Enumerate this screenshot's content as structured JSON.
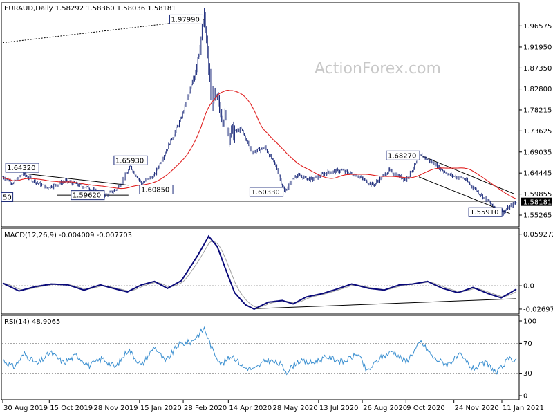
{
  "chart_data": [
    {
      "type": "candlestick",
      "panel": "price",
      "header": "EURAUD,Daily  1.58292 1.58360 1.58036 1.58181",
      "watermark": "ActionForex.com",
      "ylim": [
        1.53,
        2.01
      ],
      "ticks": [
        "1.96575",
        "1.91950",
        "1.87350",
        "1.82800",
        "1.78215",
        "1.73625",
        "1.69035",
        "1.64445",
        "1.59855",
        "1.55265"
      ],
      "current_price_label": "1.58181",
      "current_price": 1.58181,
      "colors": {
        "candle": "#1b2a7a",
        "ma": "#e02020",
        "trend": "#000000"
      },
      "anchors": [
        {
          "i": 0,
          "v": 1.636
        },
        {
          "i": 10,
          "v": 1.622
        },
        {
          "i": 18,
          "v": 1.643
        },
        {
          "i": 40,
          "v": 1.612
        },
        {
          "i": 58,
          "v": 1.627
        },
        {
          "i": 80,
          "v": 1.611
        },
        {
          "i": 95,
          "v": 1.596
        },
        {
          "i": 106,
          "v": 1.611
        },
        {
          "i": 118,
          "v": 1.658
        },
        {
          "i": 128,
          "v": 1.622
        },
        {
          "i": 140,
          "v": 1.64
        },
        {
          "i": 152,
          "v": 1.7
        },
        {
          "i": 164,
          "v": 1.76
        },
        {
          "i": 176,
          "v": 1.85
        },
        {
          "i": 186,
          "v": 1.98
        },
        {
          "i": 192,
          "v": 1.82
        },
        {
          "i": 202,
          "v": 1.78
        },
        {
          "i": 210,
          "v": 1.73
        },
        {
          "i": 220,
          "v": 1.74
        },
        {
          "i": 230,
          "v": 1.69
        },
        {
          "i": 242,
          "v": 1.7
        },
        {
          "i": 252,
          "v": 1.66
        },
        {
          "i": 260,
          "v": 1.603
        },
        {
          "i": 270,
          "v": 1.64
        },
        {
          "i": 285,
          "v": 1.63
        },
        {
          "i": 298,
          "v": 1.645
        },
        {
          "i": 312,
          "v": 1.65
        },
        {
          "i": 326,
          "v": 1.64
        },
        {
          "i": 342,
          "v": 1.618
        },
        {
          "i": 356,
          "v": 1.65
        },
        {
          "i": 372,
          "v": 1.63
        },
        {
          "i": 386,
          "v": 1.683
        },
        {
          "i": 398,
          "v": 1.665
        },
        {
          "i": 412,
          "v": 1.64
        },
        {
          "i": 426,
          "v": 1.632
        },
        {
          "i": 440,
          "v": 1.6
        },
        {
          "i": 452,
          "v": 1.573
        },
        {
          "i": 462,
          "v": 1.559
        },
        {
          "i": 474,
          "v": 1.582
        }
      ],
      "annotations": [
        {
          "text": "1.97990",
          "i": 186,
          "v": 1.9799,
          "pos": "left"
        },
        {
          "text": "1.64320",
          "i": 18,
          "v": 1.6432,
          "pos": "above"
        },
        {
          "text": "1.59620",
          "i": 95,
          "v": 1.5962,
          "pos": "left"
        },
        {
          "text": "1.60850",
          "i": 125,
          "v": 1.6085,
          "pos": "right"
        },
        {
          "text": "1.65930",
          "i": 118,
          "v": 1.6593,
          "pos": "above"
        },
        {
          "text": "1.60330",
          "i": 260,
          "v": 1.6033,
          "pos": "left"
        },
        {
          "text": "1.68270",
          "i": 386,
          "v": 1.6827,
          "pos": "left"
        },
        {
          "text": "1.55910",
          "i": 462,
          "v": 1.5591,
          "pos": "left"
        },
        {
          "text": "50",
          "i": 0,
          "v": 1.592,
          "pos": "edge"
        }
      ],
      "trendlines": [
        {
          "style": "dotted",
          "from": {
            "i": 0,
            "v": 1.929
          },
          "to": {
            "i": 186,
            "v": 1.9799
          }
        },
        {
          "style": "solid",
          "from": {
            "i": 20,
            "v": 1.6432
          },
          "to": {
            "i": 116,
            "v": 1.618
          }
        },
        {
          "style": "solid",
          "from": {
            "i": 50,
            "v": 1.5962
          },
          "to": {
            "i": 116,
            "v": 1.5962
          }
        },
        {
          "style": "solid",
          "from": {
            "i": 386,
            "v": 1.6827
          },
          "to": {
            "i": 472,
            "v": 1.599
          }
        },
        {
          "style": "solid",
          "from": {
            "i": 384,
            "v": 1.636
          },
          "to": {
            "i": 468,
            "v": 1.556
          }
        },
        {
          "style": "thin",
          "from": {
            "i": 0,
            "v": 1.5818
          },
          "to": {
            "i": 474,
            "v": 1.5818
          }
        }
      ]
    },
    {
      "type": "line",
      "panel": "macd",
      "header": "MACD(12,26,9) -0.004009 -0.007703",
      "ylim": [
        -0.031,
        0.063
      ],
      "ticks": [
        "0.059272",
        "0.0",
        "-0.026978"
      ],
      "dashed_zero": true,
      "colors": {
        "macd": "#0a0a7a",
        "signal": "#a0a0a0"
      },
      "anchors": [
        {
          "i": 0,
          "v": 0.003
        },
        {
          "i": 15,
          "v": -0.006
        },
        {
          "i": 30,
          "v": -0.001
        },
        {
          "i": 45,
          "v": 0.002
        },
        {
          "i": 60,
          "v": 0.001
        },
        {
          "i": 75,
          "v": -0.005
        },
        {
          "i": 90,
          "v": 0.001
        },
        {
          "i": 105,
          "v": -0.004
        },
        {
          "i": 115,
          "v": -0.007
        },
        {
          "i": 128,
          "v": 0.001
        },
        {
          "i": 140,
          "v": 0.005
        },
        {
          "i": 152,
          "v": -0.003
        },
        {
          "i": 165,
          "v": 0.006
        },
        {
          "i": 180,
          "v": 0.035
        },
        {
          "i": 190,
          "v": 0.057
        },
        {
          "i": 198,
          "v": 0.045
        },
        {
          "i": 206,
          "v": 0.018
        },
        {
          "i": 214,
          "v": -0.008
        },
        {
          "i": 224,
          "v": -0.022
        },
        {
          "i": 232,
          "v": -0.027
        },
        {
          "i": 245,
          "v": -0.019
        },
        {
          "i": 258,
          "v": -0.017
        },
        {
          "i": 268,
          "v": -0.021
        },
        {
          "i": 280,
          "v": -0.013
        },
        {
          "i": 295,
          "v": -0.009
        },
        {
          "i": 308,
          "v": -0.004
        },
        {
          "i": 322,
          "v": 0.002
        },
        {
          "i": 338,
          "v": -0.003
        },
        {
          "i": 352,
          "v": -0.005
        },
        {
          "i": 366,
          "v": 0.001
        },
        {
          "i": 378,
          "v": 0.002
        },
        {
          "i": 392,
          "v": 0.005
        },
        {
          "i": 406,
          "v": -0.003
        },
        {
          "i": 420,
          "v": -0.008
        },
        {
          "i": 434,
          "v": -0.002
        },
        {
          "i": 448,
          "v": -0.009
        },
        {
          "i": 460,
          "v": -0.014
        },
        {
          "i": 474,
          "v": -0.004
        }
      ],
      "trendlines": [
        {
          "style": "solid",
          "from": {
            "i": 232,
            "v": -0.0265
          },
          "to": {
            "i": 474,
            "v": -0.015
          }
        }
      ]
    },
    {
      "type": "line",
      "panel": "rsi",
      "header": "RSI(14) 48.9065",
      "ylim": [
        0,
        100
      ],
      "ticks": [
        "100",
        "70",
        "30",
        "0"
      ],
      "dashed_levels": [
        70,
        30
      ],
      "colors": {
        "rsi": "#3a8fd0"
      },
      "anchors": [
        {
          "i": 0,
          "v": 48
        },
        {
          "i": 10,
          "v": 38
        },
        {
          "i": 20,
          "v": 56
        },
        {
          "i": 32,
          "v": 42
        },
        {
          "i": 44,
          "v": 58
        },
        {
          "i": 56,
          "v": 44
        },
        {
          "i": 68,
          "v": 54
        },
        {
          "i": 80,
          "v": 40
        },
        {
          "i": 92,
          "v": 50
        },
        {
          "i": 104,
          "v": 38
        },
        {
          "i": 116,
          "v": 62
        },
        {
          "i": 128,
          "v": 40
        },
        {
          "i": 140,
          "v": 66
        },
        {
          "i": 150,
          "v": 45
        },
        {
          "i": 162,
          "v": 68
        },
        {
          "i": 174,
          "v": 72
        },
        {
          "i": 186,
          "v": 90
        },
        {
          "i": 194,
          "v": 60
        },
        {
          "i": 202,
          "v": 42
        },
        {
          "i": 212,
          "v": 54
        },
        {
          "i": 222,
          "v": 38
        },
        {
          "i": 232,
          "v": 35
        },
        {
          "i": 244,
          "v": 48
        },
        {
          "i": 256,
          "v": 42
        },
        {
          "i": 262,
          "v": 32
        },
        {
          "i": 272,
          "v": 46
        },
        {
          "i": 286,
          "v": 44
        },
        {
          "i": 300,
          "v": 52
        },
        {
          "i": 314,
          "v": 45
        },
        {
          "i": 328,
          "v": 56
        },
        {
          "i": 336,
          "v": 32
        },
        {
          "i": 348,
          "v": 50
        },
        {
          "i": 360,
          "v": 60
        },
        {
          "i": 372,
          "v": 45
        },
        {
          "i": 386,
          "v": 72
        },
        {
          "i": 398,
          "v": 50
        },
        {
          "i": 410,
          "v": 42
        },
        {
          "i": 422,
          "v": 54
        },
        {
          "i": 434,
          "v": 36
        },
        {
          "i": 446,
          "v": 44
        },
        {
          "i": 456,
          "v": 30
        },
        {
          "i": 466,
          "v": 48
        },
        {
          "i": 474,
          "v": 49
        }
      ]
    }
  ],
  "x_axis": {
    "n": 475,
    "labels": [
      {
        "text": "30 Aug 2019",
        "i": 0
      },
      {
        "text": "15 Oct 2019",
        "i": 33
      },
      {
        "text": "28 Nov 2019",
        "i": 64
      },
      {
        "text": "15 Jan 2020",
        "i": 97
      },
      {
        "text": "28 Feb 2020",
        "i": 128
      },
      {
        "text": "14 Apr 2020",
        "i": 160
      },
      {
        "text": "28 May 2020",
        "i": 191
      },
      {
        "text": "13 Jul 2020",
        "i": 224
      },
      {
        "text": "26 Aug 2020",
        "i": 255
      },
      {
        "text": "9 Oct 2020",
        "i": 286
      },
      {
        "text": "24 Nov 2020",
        "i": 320
      },
      {
        "text": "11 Jan 2021",
        "i": 354
      }
    ]
  }
}
